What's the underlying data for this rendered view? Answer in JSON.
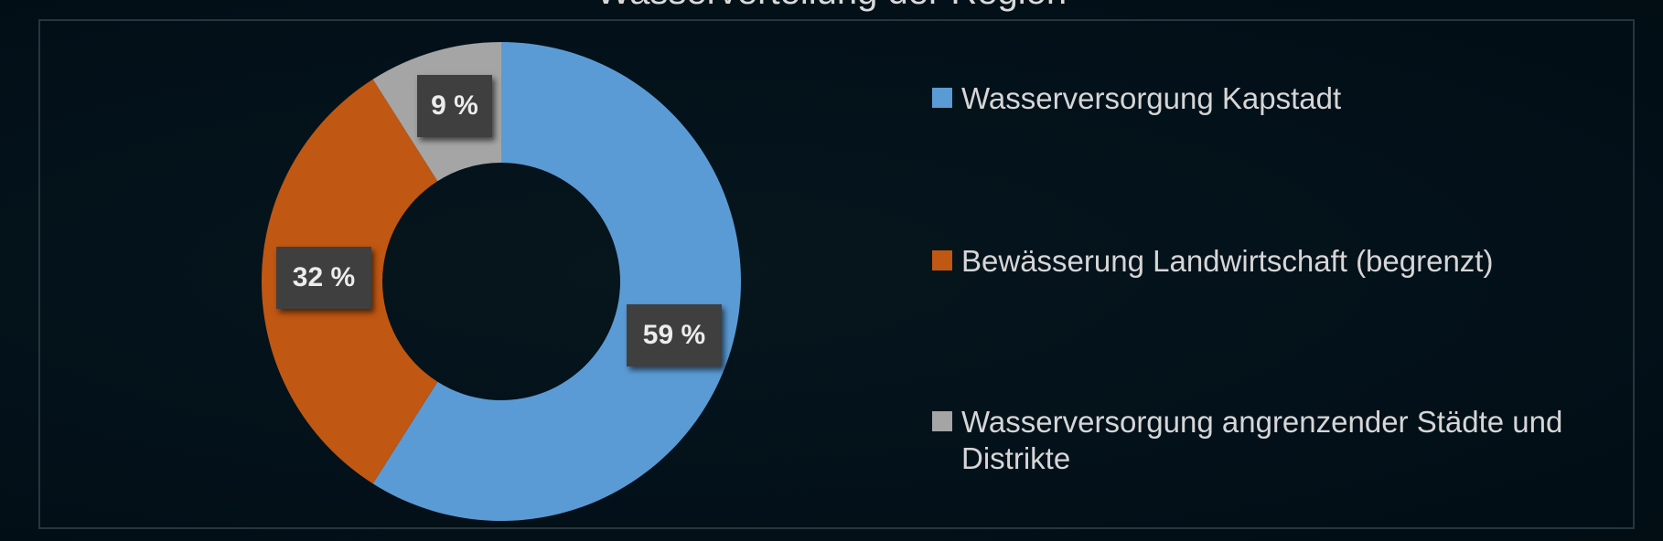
{
  "chart_data": {
    "type": "pie",
    "variant": "donut",
    "title": "Wasserverteilung der Region",
    "slices": [
      {
        "label": "Wasserversorgung Kapstadt",
        "value": 59,
        "value_label": "59 %",
        "color": "#5b9bd5"
      },
      {
        "label": "Bewässerung Landwirtschaft (begrenzt)",
        "value": 32,
        "value_label": "32 %",
        "color": "#c05712"
      },
      {
        "label": "Wasserversorgung angrenzender Städte und Distrikte",
        "value": 9,
        "value_label": "9 %",
        "color": "#a5a5a5"
      }
    ],
    "legend_position": "right"
  }
}
